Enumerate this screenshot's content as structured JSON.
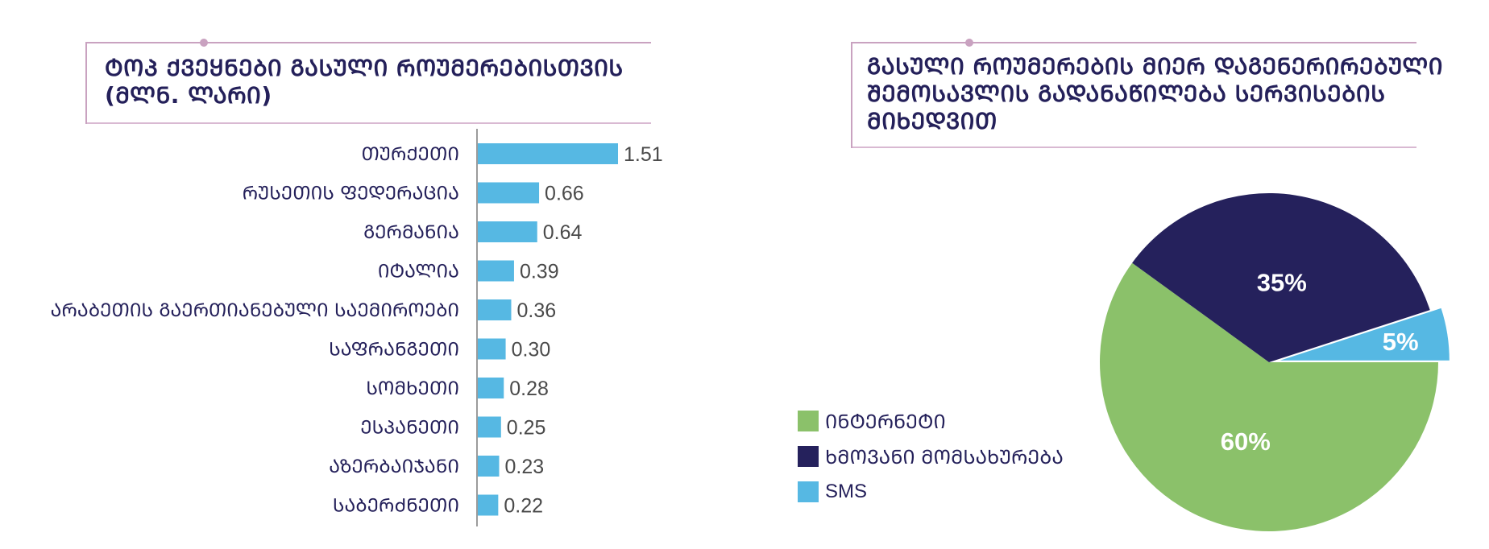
{
  "chart_data": [
    {
      "type": "bar",
      "orientation": "horizontal",
      "title": "ᲢᲝᲞ ᲥᲕᲔᲧᲜᲔᲑᲘ ᲒᲐᲡᲣᲚᲘ ᲠᲝᲣᲛᲔᲠᲔᲑᲘᲡᲗᲕᲘᲡ (ᲛᲚᲜ. ᲚᲐᲠᲘ)",
      "title_lines": [
        "ᲢᲝᲞ ᲥᲕᲔᲧᲜᲔᲑᲘ ᲒᲐᲡᲣᲚᲘ ᲠᲝᲣᲛᲔᲠᲔᲑᲘᲡᲗᲕᲘᲡ",
        "(ᲛᲚᲜ. ᲚᲐᲠᲘ)"
      ],
      "categories": [
        "ᲗᲣᲠᲥᲔᲗᲘ",
        "ᲠᲣᲡᲔᲗᲘᲡ ᲤᲔᲓᲔᲠᲐᲪᲘᲐ",
        "ᲒᲔᲠᲛᲐᲜᲘᲐ",
        "ᲘᲢᲐᲚᲘᲐ",
        "ᲐᲠᲐᲑᲔᲗᲘᲡ ᲒᲐᲔᲠᲗᲘᲐᲜᲔᲑᲣᲚᲘ ᲡᲐᲔᲛᲘᲠᲝᲔᲑᲘ",
        "ᲡᲐᲤᲠᲐᲜᲒᲔᲗᲘ",
        "ᲡᲝᲛᲮᲔᲗᲘ",
        "ᲔᲡᲞᲐᲜᲔᲗᲘ",
        "ᲐᲖᲔᲠᲑᲐᲘᲯᲐᲜᲘ",
        "ᲡᲐᲑᲔᲠᲫᲜᲔᲗᲘ"
      ],
      "values": [
        1.51,
        0.66,
        0.64,
        0.39,
        0.36,
        0.3,
        0.28,
        0.25,
        0.23,
        0.22
      ],
      "value_labels": [
        "1.51",
        "0.66",
        "0.64",
        "0.39",
        "0.36",
        "0.30",
        "0.28",
        "0.25",
        "0.23",
        "0.22"
      ],
      "xlim": [
        0,
        1.51
      ],
      "grid": false,
      "bar_color": "#56b8e3"
    },
    {
      "type": "pie",
      "title": "ᲒᲐᲡᲣᲚᲘ ᲠᲝᲣᲛᲔᲠᲔᲑᲘᲡ ᲛᲘᲔᲠ ᲓᲐᲒᲔᲜᲔᲠᲘᲠᲔᲑᲣᲚᲘ ᲨᲔᲛᲝᲡᲐᲕᲚᲘᲡ ᲒᲐᲓᲐᲜᲐᲬᲘᲚᲔᲑᲐ ᲡᲔᲠᲕᲘᲡᲔᲑᲘᲡ ᲛᲘᲮᲔᲓᲕᲘᲗ",
      "title_lines": [
        "ᲒᲐᲡᲣᲚᲘ ᲠᲝᲣᲛᲔᲠᲔᲑᲘᲡ ᲛᲘᲔᲠ ᲓᲐᲒᲔᲜᲔᲠᲘᲠᲔᲑᲣᲚᲘ",
        "ᲨᲔᲛᲝᲡᲐᲕᲚᲘᲡ ᲒᲐᲓᲐᲜᲐᲬᲘᲚᲔᲑᲐ ᲡᲔᲠᲕᲘᲡᲔᲑᲘᲡ",
        "ᲛᲘᲮᲔᲓᲕᲘᲗ"
      ],
      "slices": [
        {
          "name": "ᲘᲜᲢᲔᲠᲜᲔᲢᲘ",
          "value": 60,
          "label": "60%",
          "color": "#8bc16a"
        },
        {
          "name": "ᲮᲛᲝᲕᲐᲜᲘ ᲛᲝᲛᲡᲐᲮᲣᲠᲔᲑᲐ",
          "value": 35,
          "label": "35%",
          "color": "#25215c"
        },
        {
          "name": "SMS",
          "value": 5,
          "label": "5%",
          "color": "#56b8e3"
        }
      ],
      "legend_position": "left"
    }
  ]
}
